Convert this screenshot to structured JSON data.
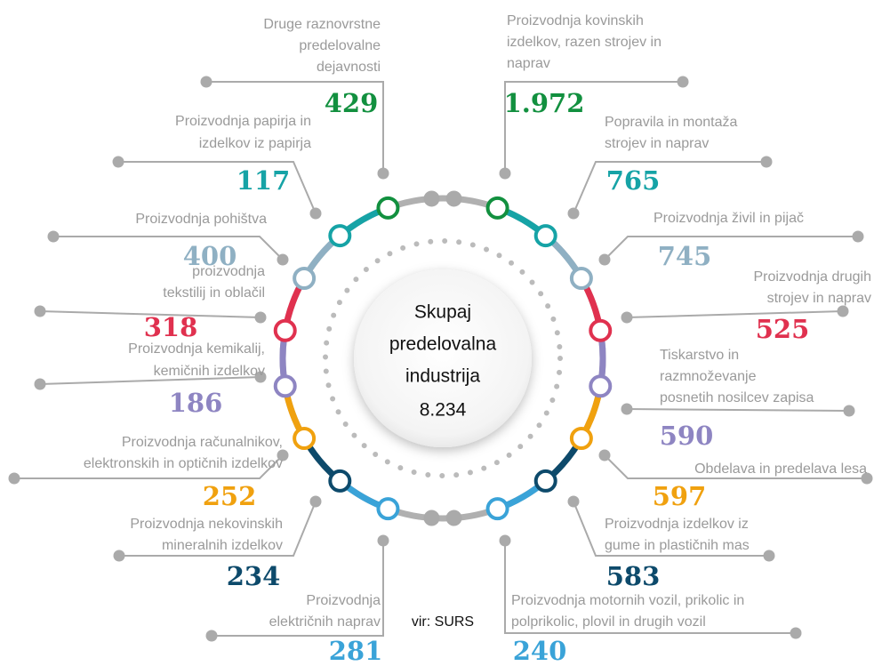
{
  "center": {
    "lines": [
      "Skupaj",
      "predelovalna",
      "industrija"
    ],
    "total": "8.234"
  },
  "source": "vir: SURS",
  "items": [
    {
      "label": [
        "Druge raznovrstne",
        "predelovalne",
        "dejavnosti"
      ],
      "value": "429",
      "color": "#12903f"
    },
    {
      "label": [
        "Proizvodnja kovinskih",
        "izdelkov, razen strojev in",
        "naprav"
      ],
      "value": "1.972",
      "color": "#12903f"
    },
    {
      "label": [
        "Proizvodnja papirja in",
        "izdelkov iz papirja"
      ],
      "value": "117",
      "color": "#16a3a6"
    },
    {
      "label": [
        "Popravila in montaža",
        "strojev in naprav"
      ],
      "value": "765",
      "color": "#16a3a6"
    },
    {
      "label": [
        "Proizvodnja pohištva"
      ],
      "value": "400",
      "color": "#8fb0c3"
    },
    {
      "label": [
        "Proizvodnja živil in pijač"
      ],
      "value": "745",
      "color": "#8fb0c3"
    },
    {
      "label": [
        "proizvodnja",
        "tekstilij in oblačil"
      ],
      "value": "318",
      "color": "#e0314f"
    },
    {
      "label": [
        "Proizvodnja drugih",
        "strojev in naprav"
      ],
      "value": "525",
      "color": "#e0314f"
    },
    {
      "label": [
        "Proizvodnja kemikalij,",
        "kemičnih izdelkov"
      ],
      "value": "186",
      "color": "#8e85c2"
    },
    {
      "label": [
        "Tiskarstvo in",
        "razmnoževanje",
        "posnetih nosilcev zapisa"
      ],
      "value": "590",
      "color": "#8e85c2"
    },
    {
      "label": [
        "Proizvodnja računalnikov,",
        "elektronskih in optičnih izdelkov"
      ],
      "value": "252",
      "color": "#f0a10f"
    },
    {
      "label": [
        "Obdelava in predelava lesa"
      ],
      "value": "597",
      "color": "#f0a10f"
    },
    {
      "label": [
        "Proizvodnja nekovinskih",
        "mineralnih izdelkov"
      ],
      "value": "234",
      "color": "#0d4a6b"
    },
    {
      "label": [
        "Proizvodnja izdelkov iz",
        "gume in plastičnih mas"
      ],
      "value": "583",
      "color": "#0d4a6b"
    },
    {
      "label": [
        "Proizvodnja",
        "električnih naprav"
      ],
      "value": "281",
      "color": "#3aa3d8"
    },
    {
      "label": [
        "Proizvodnja motornih vozil, prikolic in",
        "polprikolic, plovil in drugih vozil"
      ],
      "value": "240",
      "color": "#3aa3d8"
    }
  ]
}
